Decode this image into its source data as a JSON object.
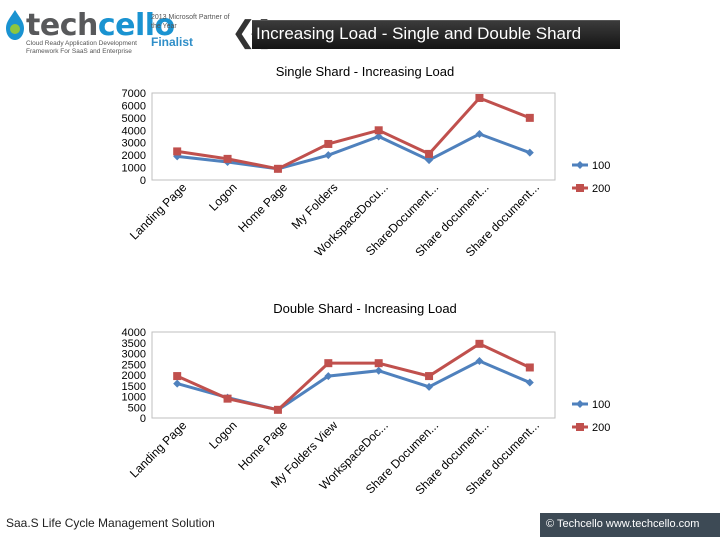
{
  "header": {
    "logo": {
      "tech": "tech",
      "cello": "cello",
      "tagline": "Cloud Ready Application Development Framework For SaaS and Enterprise"
    },
    "award": {
      "text": "2013 Microsoft Partner of the Year",
      "finalist": "Finalist"
    },
    "title": "Increasing Load - Single and Double Shard"
  },
  "footer": {
    "left": "Saa.S Life Cycle Management Solution",
    "right": "© Techcello www.techcello.com"
  },
  "colors": {
    "series_100": "#4f81bd",
    "series_200": "#c0504d",
    "title_bar": "#1f1f1f"
  },
  "chart_data": [
    {
      "type": "line",
      "title": "Single Shard - Increasing Load",
      "categories": [
        "Landing Page",
        "Logon",
        "Home Page",
        "My Folders",
        "WorkspaceDocu...",
        "ShareDocument...",
        "Share document...",
        "Share document..."
      ],
      "ylim": [
        0,
        7000
      ],
      "yticks": [
        0,
        1000,
        2000,
        3000,
        4000,
        5000,
        6000,
        7000
      ],
      "series": [
        {
          "name": "100",
          "color": "#4f81bd",
          "marker": "diamond",
          "values": [
            1900,
            1450,
            900,
            2000,
            3500,
            1600,
            3700,
            2200
          ]
        },
        {
          "name": "200",
          "color": "#c0504d",
          "marker": "square",
          "values": [
            2300,
            1700,
            900,
            2900,
            4000,
            2100,
            6600,
            5000
          ]
        }
      ],
      "legend": "right"
    },
    {
      "type": "line",
      "title": "Double Shard - Increasing Load",
      "categories": [
        "Landing Page",
        "Logon",
        "Home Page",
        "My Folders View",
        "WorkspaceDoc...",
        "Share Documen...",
        "Share document...",
        "Share document..."
      ],
      "ylim": [
        0,
        4000
      ],
      "yticks": [
        0,
        500,
        1000,
        1500,
        2000,
        2500,
        3000,
        3500,
        4000
      ],
      "series": [
        {
          "name": "100",
          "color": "#4f81bd",
          "marker": "diamond",
          "values": [
            1600,
            950,
            380,
            1950,
            2200,
            1450,
            2650,
            1650
          ]
        },
        {
          "name": "200",
          "color": "#c0504d",
          "marker": "square",
          "values": [
            1950,
            900,
            380,
            2550,
            2550,
            1950,
            3450,
            2350
          ]
        }
      ],
      "legend": "right"
    }
  ]
}
